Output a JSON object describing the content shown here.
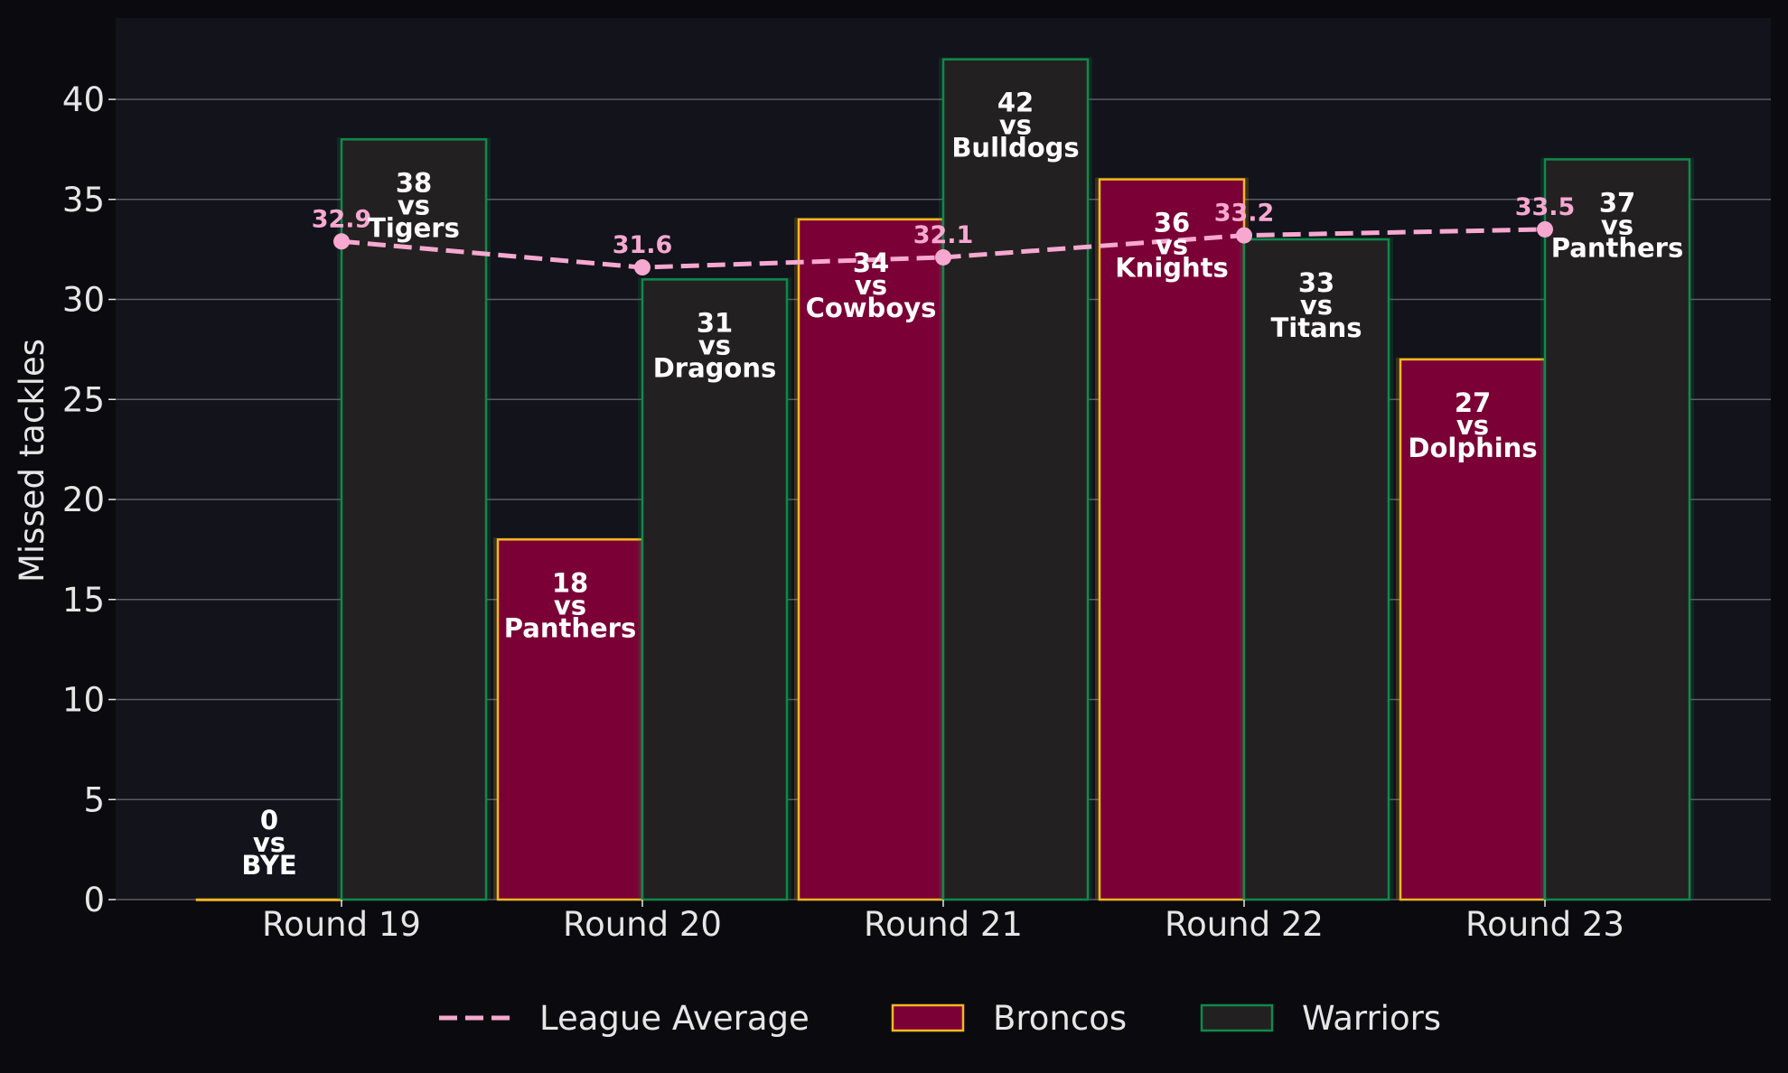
{
  "chart_data": {
    "type": "bar",
    "title": "",
    "xlabel": "",
    "ylabel": "Missed tackles",
    "ylim": [
      0,
      44
    ],
    "yticks": [
      0,
      5,
      10,
      15,
      20,
      25,
      30,
      35,
      40
    ],
    "grid": true,
    "legend_position": "bottom",
    "categories": [
      "Round 19",
      "Round 20",
      "Round 21",
      "Round 22",
      "Round 23"
    ],
    "series": [
      {
        "name": "Broncos",
        "type": "bar",
        "fill": "#7a0036",
        "stroke": "#f2b822",
        "values": [
          0,
          18,
          34,
          36,
          27
        ],
        "opponents": [
          "BYE",
          "Panthers",
          "Cowboys",
          "Knights",
          "Dolphins"
        ]
      },
      {
        "name": "Warriors",
        "type": "bar",
        "fill": "#232021",
        "stroke": "#0e8a4a",
        "values": [
          38,
          31,
          42,
          33,
          37
        ],
        "opponents": [
          "Tigers",
          "Dragons",
          "Bulldogs",
          "Titans",
          "Panthers"
        ]
      },
      {
        "name": "League Average",
        "type": "line",
        "style": "dashed",
        "color": "#f7a8d0",
        "values": [
          32.9,
          31.6,
          32.1,
          33.2,
          33.5
        ]
      }
    ],
    "vs_word": "vs",
    "colors": {
      "background": "#0b0b0f",
      "plot_background": "#12131b",
      "grid": "#5c5c62",
      "text": "#e6e6e6"
    }
  }
}
